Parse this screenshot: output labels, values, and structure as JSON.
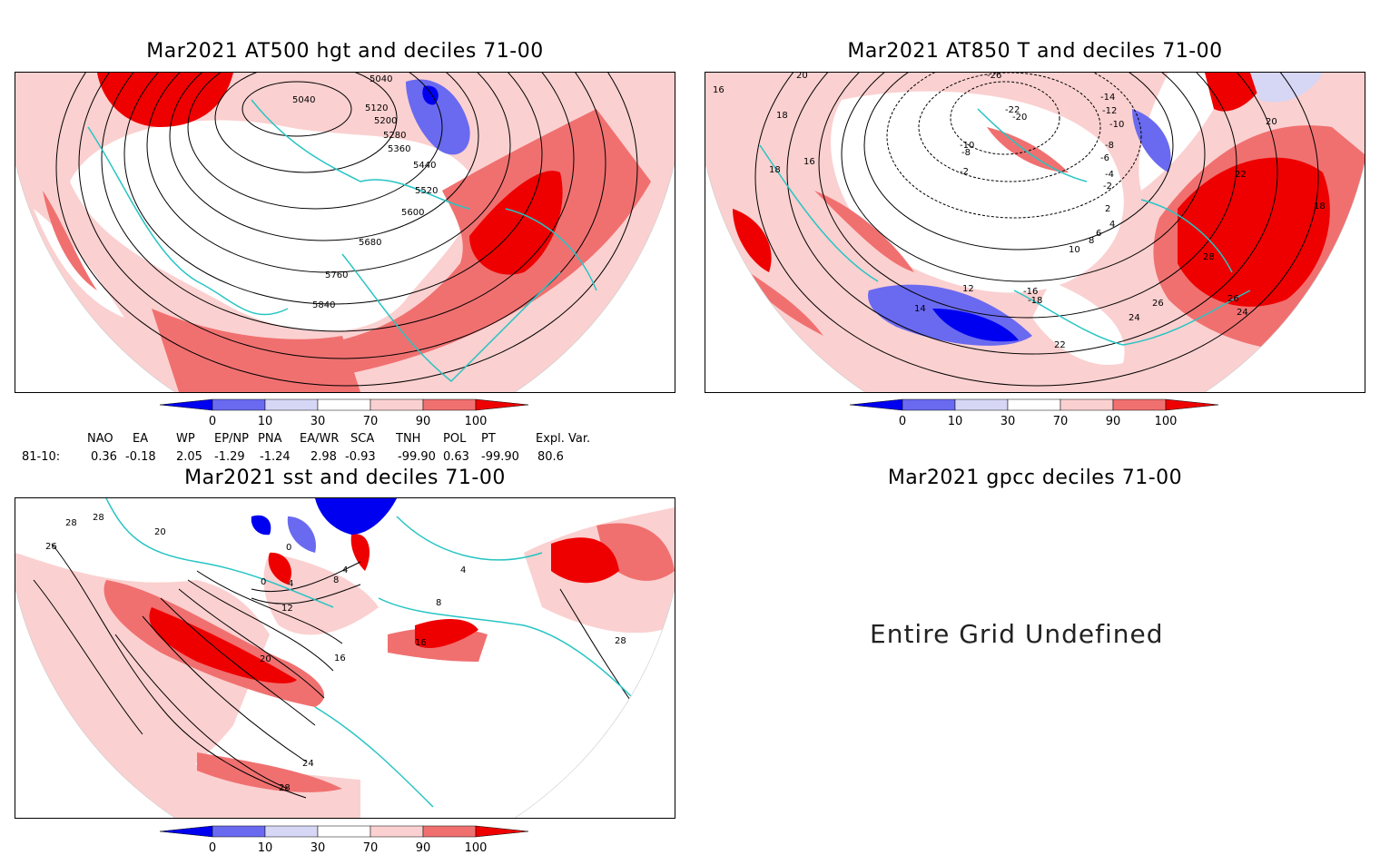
{
  "panels": {
    "hgt": {
      "title": "Mar2021 AT500 hgt and deciles 71-00",
      "contour_labels": [
        "5040",
        "5040",
        "5120",
        "5200",
        "5280",
        "5360",
        "5440",
        "5520",
        "5600",
        "5680",
        "5760",
        "5840"
      ]
    },
    "t850": {
      "title": "Mar2021 AT850 T and deciles 71-00",
      "contour_labels": [
        "-26",
        "-14",
        "-12",
        "-10",
        "-8",
        "-6",
        "-4",
        "-2",
        "2",
        "4",
        "6",
        "8",
        "10",
        "12",
        "14",
        "16",
        "16",
        "18",
        "18",
        "20",
        "20",
        "22",
        "22",
        "24",
        "24",
        "26",
        "26",
        "28",
        "18",
        "-16",
        "-18",
        "-20",
        "-22",
        "-10",
        "-8",
        "-2"
      ]
    },
    "sst": {
      "title": "Mar2021 sst and deciles 71-00",
      "contour_labels": [
        "28",
        "28",
        "26",
        "20",
        "0",
        "0",
        "4",
        "8",
        "4",
        "12",
        "16",
        "20",
        "24",
        "28",
        "28",
        "4",
        "8",
        "16"
      ]
    },
    "gpcc": {
      "title": "Mar2021 gpcc deciles 71-00",
      "message": "Entire Grid Undefined"
    }
  },
  "colorbar": {
    "ticks": [
      "0",
      "10",
      "30",
      "70",
      "90",
      "100"
    ],
    "colors": [
      "#0000f0",
      "#6a6af0",
      "#d6d6f5",
      "#ffffff",
      "#fbd0d0",
      "#f07070",
      "#ee0000"
    ]
  },
  "teleconnections": {
    "headers": [
      "NAO",
      "EA",
      "WP",
      "EP/NP",
      "PNA",
      "EA/WR",
      "SCA",
      "TNH",
      "POL",
      "PT",
      "Expl. Var."
    ],
    "row_label": "81-10:",
    "values": [
      "0.36",
      "-0.18",
      "2.05",
      "-1.29",
      "-1.24",
      "2.98",
      "-0.93",
      "-99.90",
      "0.63",
      "-99.90",
      "80.6"
    ]
  }
}
